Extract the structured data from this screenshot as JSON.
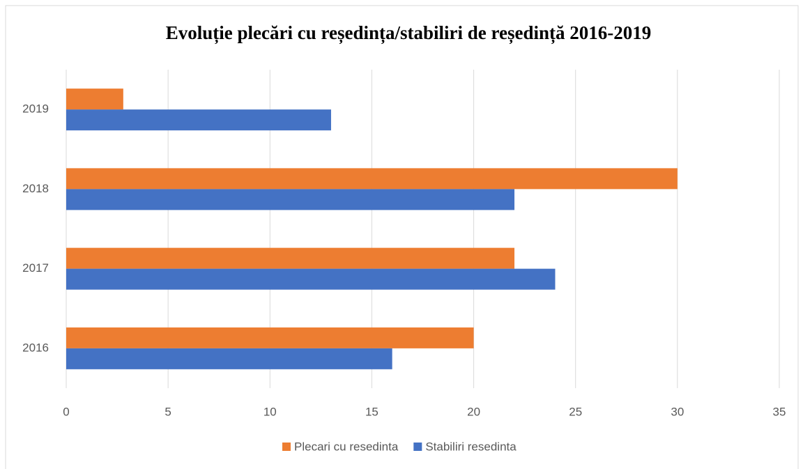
{
  "chart_data": {
    "type": "bar",
    "orientation": "horizontal",
    "title": "Evoluție plecări cu reședința/stabiliri de reședință 2016-2019",
    "categories": [
      "2016",
      "2017",
      "2018",
      "2019"
    ],
    "series": [
      {
        "name": "Plecari cu resedinta",
        "color": "#ed7d31",
        "values": [
          20,
          22,
          30,
          2.8
        ]
      },
      {
        "name": "Stabiliri resedinta",
        "color": "#4472c4",
        "values": [
          16,
          24,
          22,
          13
        ]
      }
    ],
    "xlim": [
      0,
      35
    ],
    "xticks": [
      0,
      5,
      10,
      15,
      20,
      25,
      30,
      35
    ],
    "grid": true,
    "legend": "bottom"
  }
}
